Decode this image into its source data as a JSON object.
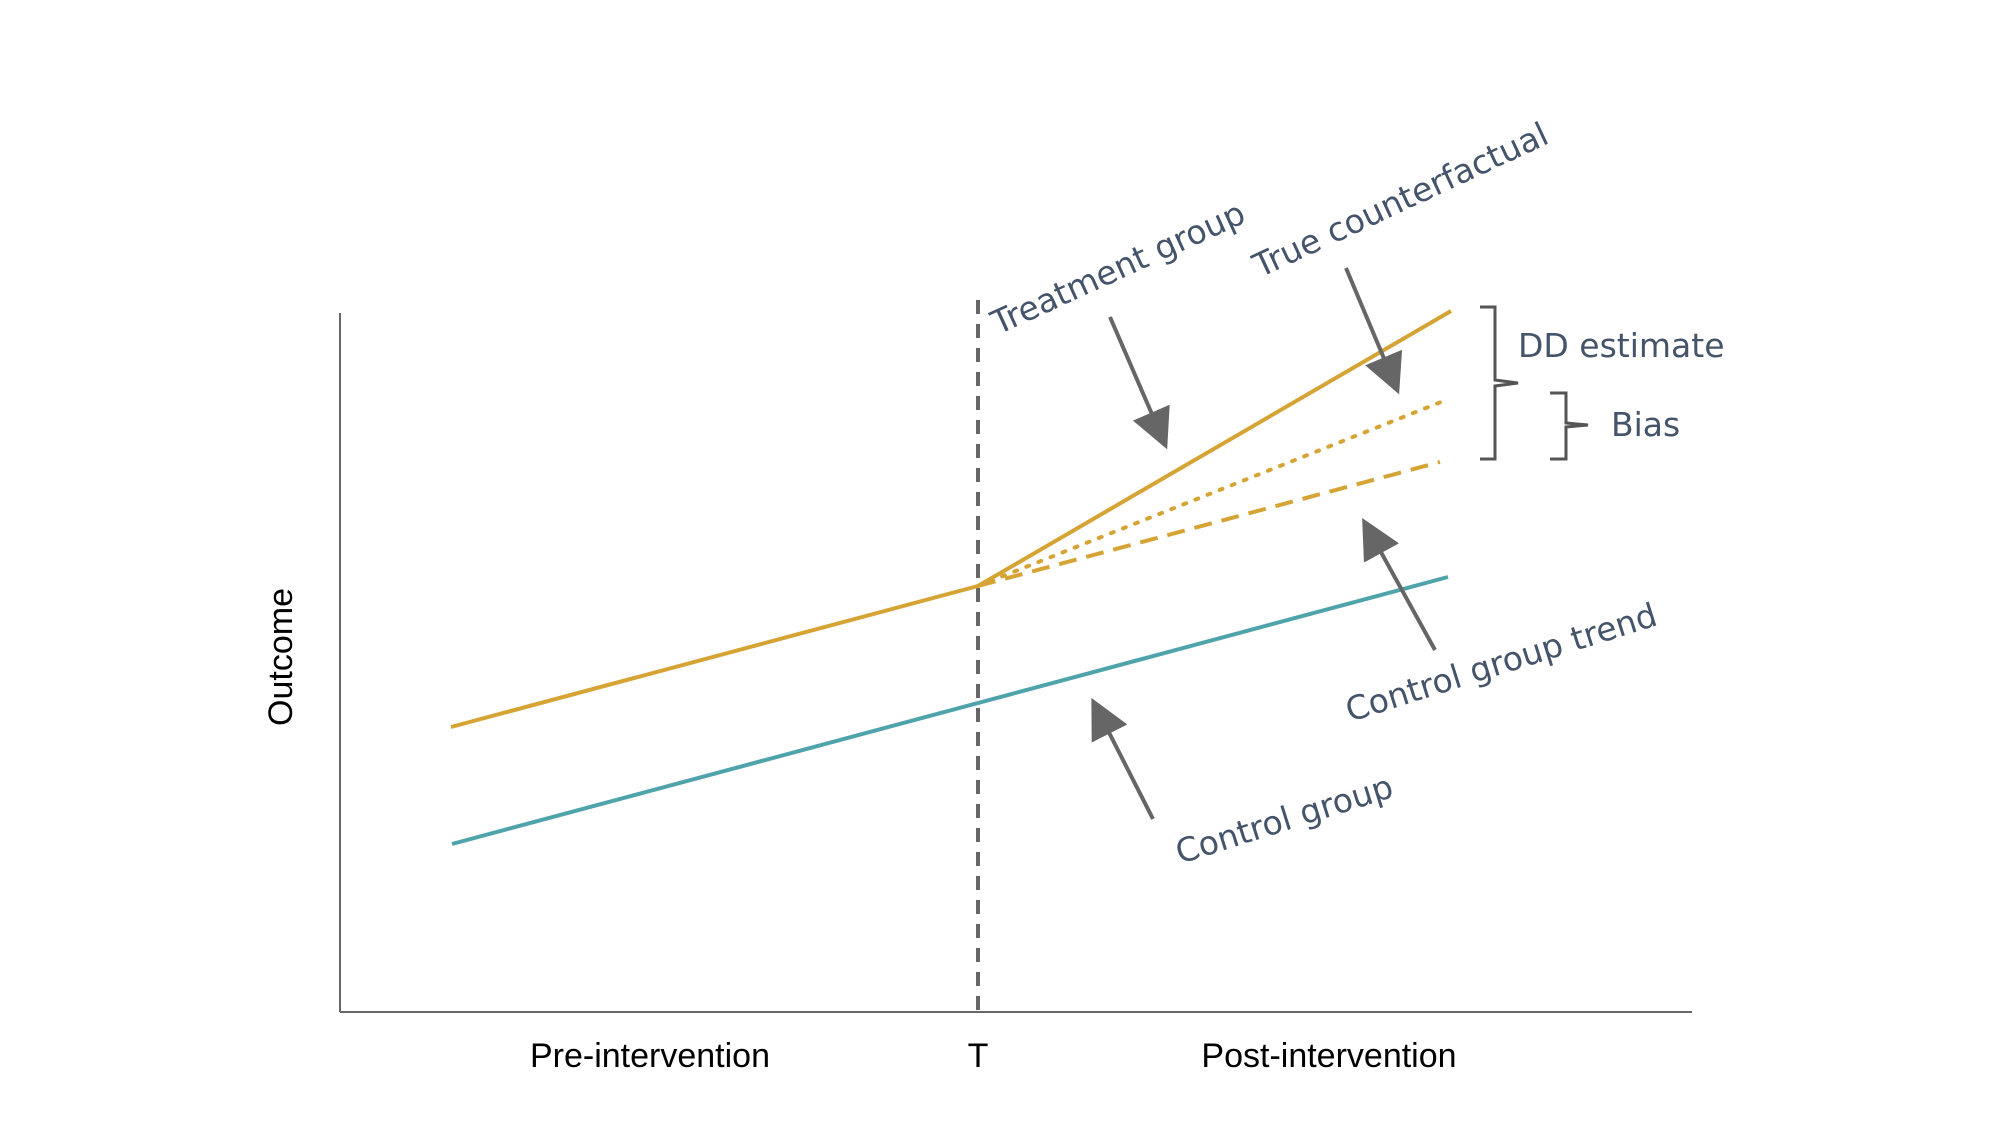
{
  "colors": {
    "treatment": "#d6a435",
    "control": "#4fa3ab",
    "annotation_text": "#44546a",
    "arrow": "#666666",
    "axis": "#666666",
    "divider": "#666666"
  },
  "axes": {
    "y_label": "Outcome",
    "x_ticks": {
      "pre": "Pre-intervention",
      "t": "T",
      "post": "Post-intervention"
    }
  },
  "annotations": {
    "treatment_group": "Treatment group",
    "true_counterfactual": "True counterfactual",
    "control_group_trend": "Control group trend",
    "control_group": "Control group",
    "dd_estimate": "DD estimate",
    "bias": "Bias"
  }
}
